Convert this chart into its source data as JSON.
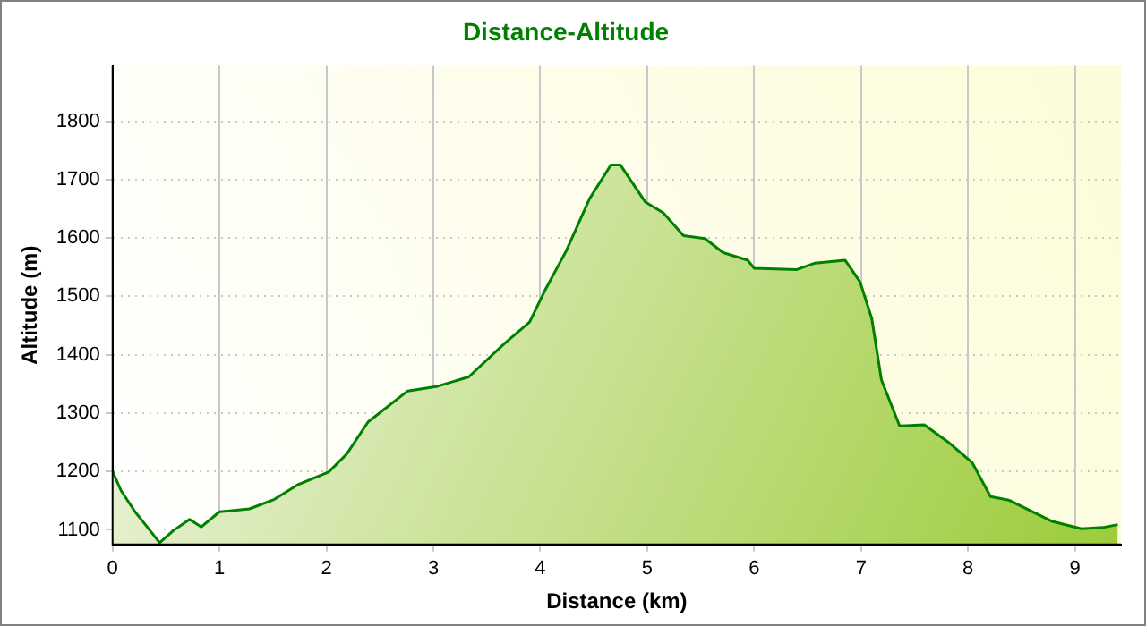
{
  "chart_data": {
    "type": "area",
    "title": "Distance-Altitude",
    "xlabel": "Distance (km)",
    "ylabel": "Altitude (m)",
    "x": [
      0,
      0.08,
      0.21,
      0.32,
      0.44,
      0.57,
      0.72,
      0.83,
      1.0,
      1.28,
      1.51,
      1.74,
      2.02,
      2.19,
      2.39,
      2.76,
      3.04,
      3.33,
      3.67,
      3.9,
      4.04,
      4.24,
      4.46,
      4.66,
      4.75,
      4.98,
      5.15,
      5.34,
      5.54,
      5.71,
      5.94,
      6.0,
      6.4,
      6.57,
      6.85,
      6.99,
      7.1,
      7.19,
      7.36,
      7.59,
      7.81,
      8.04,
      8.21,
      8.38,
      8.78,
      9.06,
      9.26,
      9.4
    ],
    "series": [
      {
        "color": "#008000",
        "values": [
          1200,
          1167,
          1131,
          1106,
          1078,
          1099,
          1118,
          1105,
          1131,
          1136,
          1152,
          1178,
          1199,
          1230,
          1285,
          1338,
          1346,
          1362,
          1420,
          1456,
          1509,
          1577,
          1667,
          1725,
          1725,
          1662,
          1643,
          1604,
          1599,
          1575,
          1562,
          1548,
          1546,
          1557,
          1562,
          1525,
          1462,
          1357,
          1278,
          1280,
          1251,
          1215,
          1157,
          1151,
          1115,
          1102,
          1104,
          1109
        ]
      }
    ],
    "xlim": [
      0,
      9.43
    ],
    "ylim": [
      1075,
      1895
    ],
    "xticks": [
      0,
      1,
      2,
      3,
      4,
      5,
      6,
      7,
      8,
      9
    ],
    "yticks": [
      1100,
      1200,
      1300,
      1400,
      1500,
      1600,
      1700,
      1800
    ],
    "grid": true,
    "legend": false
  }
}
